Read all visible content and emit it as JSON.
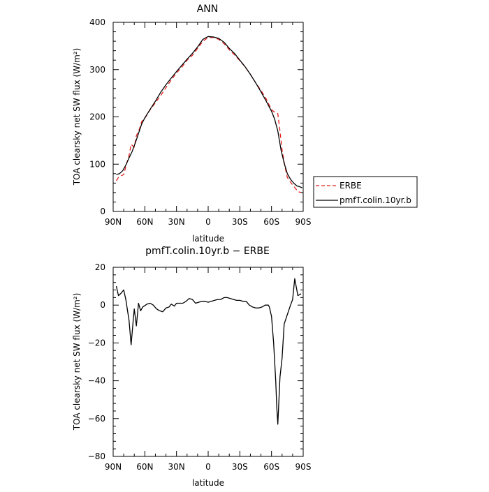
{
  "chart_data": [
    {
      "type": "line",
      "title": "ANN",
      "xlabel": "latitude",
      "ylabel": "TOA clearsky net SW flux (W/m²)",
      "xlim": [
        90,
        -90
      ],
      "ylim": [
        0,
        400
      ],
      "xticks": [
        90,
        60,
        30,
        0,
        -30,
        -60,
        -90
      ],
      "xtick_labels": [
        "90N",
        "60N",
        "30N",
        "0",
        "30S",
        "60S",
        "90S"
      ],
      "yticks": [
        0,
        100,
        200,
        300,
        400
      ],
      "ytick_labels": [
        "0",
        "100",
        "200",
        "300",
        "400"
      ],
      "grid": false,
      "legend_position": "right",
      "series": [
        {
          "name": "ERBE",
          "color": "#e0201e",
          "dash": "dashed",
          "points": [
            [
              87,
              65
            ],
            [
              85,
              72
            ],
            [
              83,
              75
            ],
            [
              80,
              78
            ],
            [
              78,
              95
            ],
            [
              75,
              118
            ],
            [
              73,
              142
            ],
            [
              70,
              136
            ],
            [
              68,
              160
            ],
            [
              65,
              175
            ],
            [
              63,
              190
            ],
            [
              60,
              197
            ],
            [
              55,
              215
            ],
            [
              50,
              230
            ],
            [
              45,
              245
            ],
            [
              40,
              262
            ],
            [
              35,
              278
            ],
            [
              30,
              293
            ],
            [
              25,
              305
            ],
            [
              20,
              320
            ],
            [
              15,
              330
            ],
            [
              10,
              345
            ],
            [
              5,
              360
            ],
            [
              0,
              368
            ],
            [
              -5,
              368
            ],
            [
              -10,
              364
            ],
            [
              -15,
              355
            ],
            [
              -20,
              342
            ],
            [
              -25,
              331
            ],
            [
              -30,
              319
            ],
            [
              -35,
              306
            ],
            [
              -40,
              290
            ],
            [
              -45,
              272
            ],
            [
              -50,
              256
            ],
            [
              -55,
              238
            ],
            [
              -60,
              215
            ],
            [
              -63,
              210
            ],
            [
              -66,
              207
            ],
            [
              -68,
              170
            ],
            [
              -70,
              130
            ],
            [
              -73,
              92
            ],
            [
              -75,
              72
            ],
            [
              -78,
              62
            ],
            [
              -80,
              56
            ],
            [
              -83,
              48
            ],
            [
              -85,
              42
            ],
            [
              -88,
              40
            ]
          ]
        },
        {
          "name": "pmfT.colin.10yr.b",
          "color": "#000000",
          "dash": "solid",
          "points": [
            [
              87,
              78
            ],
            [
              84,
              80
            ],
            [
              81,
              86
            ],
            [
              78,
              98
            ],
            [
              75,
              113
            ],
            [
              72,
              127
            ],
            [
              69,
              145
            ],
            [
              66,
              165
            ],
            [
              63,
              185
            ],
            [
              60,
              198
            ],
            [
              55,
              216
            ],
            [
              50,
              233
            ],
            [
              45,
              252
            ],
            [
              40,
              268
            ],
            [
              35,
              282
            ],
            [
              30,
              296
            ],
            [
              25,
              309
            ],
            [
              20,
              322
            ],
            [
              15,
              334
            ],
            [
              10,
              348
            ],
            [
              5,
              364
            ],
            [
              0,
              370
            ],
            [
              -5,
              369
            ],
            [
              -10,
              366
            ],
            [
              -15,
              358
            ],
            [
              -20,
              345
            ],
            [
              -25,
              334
            ],
            [
              -30,
              320
            ],
            [
              -35,
              306
            ],
            [
              -40,
              290
            ],
            [
              -45,
              272
            ],
            [
              -50,
              253
            ],
            [
              -55,
              233
            ],
            [
              -60,
              212
            ],
            [
              -63,
              195
            ],
            [
              -66,
              170
            ],
            [
              -69,
              130
            ],
            [
              -72,
              102
            ],
            [
              -75,
              80
            ],
            [
              -78,
              68
            ],
            [
              -81,
              60
            ],
            [
              -84,
              54
            ],
            [
              -87,
              52
            ],
            [
              -89,
              50
            ]
          ]
        }
      ]
    },
    {
      "type": "line",
      "title": "pmfT.colin.10yr.b − ERBE",
      "xlabel": "latitude",
      "ylabel": "TOA clearsky net SW flux (W/m²)",
      "xlim": [
        90,
        -90
      ],
      "ylim": [
        -80,
        20
      ],
      "xticks": [
        90,
        60,
        30,
        0,
        -30,
        -60,
        -90
      ],
      "xtick_labels": [
        "90N",
        "60N",
        "30N",
        "0",
        "30S",
        "60S",
        "90S"
      ],
      "yticks": [
        -80,
        -60,
        -40,
        -20,
        0,
        20
      ],
      "ytick_labels": [
        "−80",
        "−60",
        "−40",
        "−20",
        "0",
        "20"
      ],
      "grid": false,
      "series": [
        {
          "color": "#000000",
          "points": [
            [
              87,
              10
            ],
            [
              85,
              5
            ],
            [
              83,
              6
            ],
            [
              80,
              8
            ],
            [
              78,
              3
            ],
            [
              75,
              -8
            ],
            [
              73,
              -21
            ],
            [
              71,
              -8
            ],
            [
              70,
              -2
            ],
            [
              68,
              -11
            ],
            [
              66,
              1
            ],
            [
              64,
              -3
            ],
            [
              62,
              -1
            ],
            [
              58,
              0.5
            ],
            [
              55,
              1
            ],
            [
              52,
              0
            ],
            [
              49,
              -2
            ],
            [
              46,
              -3
            ],
            [
              43,
              -3.5
            ],
            [
              40,
              -1.5
            ],
            [
              37,
              -1
            ],
            [
              35,
              0.5
            ],
            [
              32,
              -0.5
            ],
            [
              30,
              1
            ],
            [
              27,
              1
            ],
            [
              24,
              1
            ],
            [
              21,
              2
            ],
            [
              18,
              3.5
            ],
            [
              15,
              3
            ],
            [
              12,
              1
            ],
            [
              9,
              1.5
            ],
            [
              6,
              2
            ],
            [
              3,
              2
            ],
            [
              0,
              1.5
            ],
            [
              -3,
              2
            ],
            [
              -6,
              2.5
            ],
            [
              -9,
              3
            ],
            [
              -12,
              3
            ],
            [
              -15,
              4
            ],
            [
              -18,
              4
            ],
            [
              -21,
              3.5
            ],
            [
              -24,
              3
            ],
            [
              -27,
              2.5
            ],
            [
              -30,
              2.5
            ],
            [
              -33,
              2
            ],
            [
              -36,
              2
            ],
            [
              -39,
              0
            ],
            [
              -42,
              -1
            ],
            [
              -45,
              -1.5
            ],
            [
              -48,
              -1.5
            ],
            [
              -51,
              -1
            ],
            [
              -54,
              0
            ],
            [
              -57,
              0
            ],
            [
              -58,
              -1
            ],
            [
              -60,
              -6
            ],
            [
              -62,
              -20
            ],
            [
              -64,
              -40
            ],
            [
              -65,
              -54
            ],
            [
              -66,
              -63
            ],
            [
              -68,
              -38
            ],
            [
              -70,
              -28
            ],
            [
              -72,
              -10
            ],
            [
              -75,
              -5
            ],
            [
              -78,
              0
            ],
            [
              -80,
              3
            ],
            [
              -82,
              14
            ],
            [
              -85,
              5
            ],
            [
              -88,
              6
            ]
          ]
        }
      ]
    }
  ]
}
